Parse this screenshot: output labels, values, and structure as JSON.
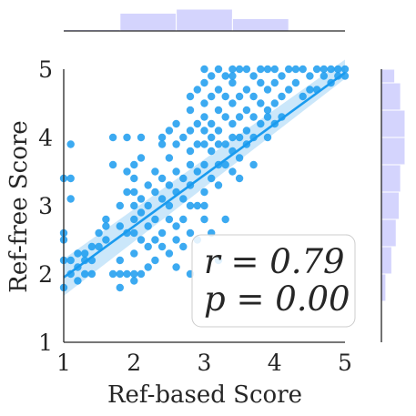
{
  "chart_data": {
    "type": "scatter",
    "subtype": "jointplot-with-regression",
    "xlabel": "Ref-based Score",
    "ylabel": "Ref-free Score",
    "xlim": [
      1,
      5
    ],
    "ylim": [
      1,
      5
    ],
    "x_ticks": [
      1,
      2,
      3,
      4,
      5
    ],
    "y_ticks": [
      1,
      2,
      3,
      4,
      5
    ],
    "x_tick_labels": [
      "1",
      "2",
      "3",
      "4",
      "5"
    ],
    "y_tick_labels": [
      "1",
      "2",
      "3",
      "4",
      "5"
    ],
    "colors": {
      "points": "#1a9bef",
      "regression_line": "#1a9bef",
      "confidence_band": "#a9d7f7",
      "histogram": "#d4d4fd",
      "axis": "#262626"
    },
    "regression": {
      "slope": 0.75,
      "intercept": 1.2,
      "ci_low_at_x1": 1.68,
      "ci_high_at_x1": 2.22,
      "ci_low_at_x5": 4.86,
      "ci_high_at_x5": 5.14
    },
    "annotation": {
      "r_text": "r = 0.79",
      "p_text": "p = 0.00",
      "legend_location": "lower-right"
    },
    "x_marginal_hist": {
      "bins": [
        1.0,
        1.8,
        2.6,
        3.4,
        4.2,
        5.0
      ],
      "counts": [
        1,
        13,
        16,
        9,
        0
      ]
    },
    "y_marginal_hist": {
      "bins": [
        1.6,
        2.0,
        2.4,
        2.8,
        3.2,
        3.6,
        4.0,
        4.4,
        4.8,
        5.0
      ],
      "counts": [
        3,
        7,
        10,
        12,
        13,
        16,
        16,
        13,
        9
      ]
    },
    "points": [
      [
        1.0,
        2.6
      ],
      [
        1.0,
        2.5
      ],
      [
        1.0,
        2.2
      ],
      [
        1.0,
        1.8
      ],
      [
        1.0,
        3.4
      ],
      [
        1.1,
        3.1
      ],
      [
        1.1,
        2.2
      ],
      [
        1.1,
        2.0
      ],
      [
        1.1,
        3.4
      ],
      [
        1.1,
        3.9
      ],
      [
        1.2,
        2.3
      ],
      [
        1.2,
        2.1
      ],
      [
        1.2,
        1.9
      ],
      [
        1.3,
        2.2
      ],
      [
        1.3,
        2.0
      ],
      [
        1.3,
        2.3
      ],
      [
        1.4,
        2.4
      ],
      [
        1.4,
        2.0
      ],
      [
        1.4,
        2.2
      ],
      [
        1.5,
        2.4
      ],
      [
        1.5,
        2.6
      ],
      [
        1.6,
        2.7
      ],
      [
        1.6,
        2.5
      ],
      [
        1.6,
        2.8
      ],
      [
        1.7,
        4.0
      ],
      [
        1.7,
        3.6
      ],
      [
        1.8,
        3.0
      ],
      [
        1.8,
        2.7
      ],
      [
        1.8,
        2.2
      ],
      [
        1.8,
        2.0
      ],
      [
        1.9,
        2.6
      ],
      [
        1.9,
        3.2
      ],
      [
        1.9,
        4.0
      ],
      [
        1.9,
        3.5
      ],
      [
        1.9,
        2.0
      ],
      [
        2.0,
        2.0
      ],
      [
        2.0,
        2.3
      ],
      [
        2.0,
        2.6
      ],
      [
        2.0,
        2.8
      ],
      [
        2.0,
        3.0
      ],
      [
        2.0,
        3.2
      ],
      [
        2.0,
        3.4
      ],
      [
        2.0,
        3.6
      ],
      [
        2.1,
        2.9
      ],
      [
        2.1,
        2.5
      ],
      [
        2.1,
        2.0
      ],
      [
        2.1,
        3.1
      ],
      [
        2.1,
        3.7
      ],
      [
        2.1,
        4.0
      ],
      [
        2.2,
        2.7
      ],
      [
        2.2,
        2.4
      ],
      [
        2.2,
        3.0
      ],
      [
        2.2,
        3.3
      ],
      [
        2.2,
        2.1
      ],
      [
        2.3,
        2.5
      ],
      [
        2.3,
        2.8
      ],
      [
        2.3,
        3.2
      ],
      [
        2.3,
        3.5
      ],
      [
        2.3,
        2.2
      ],
      [
        2.4,
        3.9
      ],
      [
        2.4,
        4.0
      ],
      [
        2.4,
        3.1
      ],
      [
        2.4,
        2.6
      ],
      [
        2.4,
        2.4
      ],
      [
        2.4,
        3.4
      ],
      [
        2.5,
        2.3
      ],
      [
        2.5,
        2.8
      ],
      [
        2.5,
        3.0
      ],
      [
        2.5,
        3.3
      ],
      [
        2.5,
        3.7
      ],
      [
        2.5,
        4.1
      ],
      [
        2.6,
        2.7
      ],
      [
        2.6,
        3.2
      ],
      [
        2.6,
        3.5
      ],
      [
        2.6,
        2.5
      ],
      [
        2.6,
        3.9
      ],
      [
        2.6,
        4.2
      ],
      [
        2.7,
        2.8
      ],
      [
        2.7,
        3.1
      ],
      [
        2.7,
        3.4
      ],
      [
        2.7,
        4.0
      ],
      [
        2.7,
        2.4
      ],
      [
        2.8,
        2.6
      ],
      [
        2.8,
        3.0
      ],
      [
        2.8,
        3.3
      ],
      [
        2.8,
        3.6
      ],
      [
        2.8,
        3.8
      ],
      [
        2.8,
        4.1
      ],
      [
        2.8,
        4.4
      ],
      [
        2.8,
        4.6
      ],
      [
        2.9,
        3.0
      ],
      [
        2.9,
        3.5
      ],
      [
        2.9,
        3.9
      ],
      [
        2.9,
        4.2
      ],
      [
        2.9,
        4.7
      ],
      [
        2.9,
        2.5
      ],
      [
        3.0,
        2.8
      ],
      [
        3.0,
        3.2
      ],
      [
        3.0,
        3.6
      ],
      [
        3.0,
        3.9
      ],
      [
        3.0,
        4.1
      ],
      [
        3.0,
        4.3
      ],
      [
        3.0,
        4.5
      ],
      [
        3.0,
        4.8
      ],
      [
        3.0,
        5.0
      ],
      [
        3.0,
        3.0
      ],
      [
        3.1,
        3.4
      ],
      [
        3.1,
        3.8
      ],
      [
        3.1,
        4.0
      ],
      [
        3.1,
        4.2
      ],
      [
        3.1,
        4.6
      ],
      [
        3.1,
        4.9
      ],
      [
        3.1,
        2.6
      ],
      [
        3.2,
        3.3
      ],
      [
        3.2,
        3.6
      ],
      [
        3.2,
        3.9
      ],
      [
        3.2,
        4.1
      ],
      [
        3.2,
        4.4
      ],
      [
        3.2,
        4.7
      ],
      [
        3.2,
        5.0
      ],
      [
        3.3,
        3.6
      ],
      [
        3.3,
        3.9
      ],
      [
        3.3,
        4.3
      ],
      [
        3.3,
        4.6
      ],
      [
        3.3,
        4.9
      ],
      [
        3.3,
        2.8
      ],
      [
        3.4,
        3.5
      ],
      [
        3.4,
        3.8
      ],
      [
        3.4,
        4.0
      ],
      [
        3.4,
        4.2
      ],
      [
        3.4,
        4.5
      ],
      [
        3.4,
        4.8
      ],
      [
        3.4,
        5.0
      ],
      [
        3.5,
        3.7
      ],
      [
        3.5,
        4.0
      ],
      [
        3.5,
        4.3
      ],
      [
        3.5,
        4.6
      ],
      [
        3.5,
        5.0
      ],
      [
        3.5,
        3.4
      ],
      [
        3.6,
        3.9
      ],
      [
        3.6,
        4.1
      ],
      [
        3.6,
        4.4
      ],
      [
        3.6,
        4.7
      ],
      [
        3.6,
        5.0
      ],
      [
        3.7,
        3.6
      ],
      [
        3.7,
        4.0
      ],
      [
        3.7,
        4.3
      ],
      [
        3.7,
        4.6
      ],
      [
        3.7,
        4.9
      ],
      [
        3.8,
        4.2
      ],
      [
        3.8,
        4.5
      ],
      [
        3.8,
        4.8
      ],
      [
        3.8,
        5.0
      ],
      [
        3.9,
        4.0
      ],
      [
        3.9,
        4.3
      ],
      [
        3.9,
        4.7
      ],
      [
        3.9,
        5.0
      ],
      [
        4.0,
        4.5
      ],
      [
        4.0,
        4.8
      ],
      [
        4.0,
        5.0
      ],
      [
        4.0,
        4.2
      ],
      [
        4.1,
        4.6
      ],
      [
        4.1,
        4.9
      ],
      [
        4.1,
        4.3
      ],
      [
        4.2,
        4.7
      ],
      [
        4.2,
        5.0
      ],
      [
        4.3,
        4.8
      ],
      [
        4.3,
        5.0
      ],
      [
        4.4,
        4.6
      ],
      [
        4.4,
        5.0
      ],
      [
        4.5,
        4.9
      ],
      [
        4.6,
        5.0
      ],
      [
        4.6,
        4.7
      ],
      [
        4.7,
        5.0
      ],
      [
        4.8,
        5.0
      ],
      [
        4.8,
        4.8
      ],
      [
        4.9,
        5.0
      ],
      [
        4.9,
        4.9
      ],
      [
        5.0,
        5.0
      ],
      [
        5.0,
        4.9
      ],
      [
        1.7,
        2.0
      ],
      [
        1.8,
        1.8
      ],
      [
        2.0,
        1.9
      ],
      [
        2.8,
        2.0
      ],
      [
        3.2,
        2.2
      ],
      [
        2.6,
        2.1
      ],
      [
        3.4,
        4.9
      ],
      [
        3.9,
        4.4
      ],
      [
        4.5,
        4.7
      ],
      [
        4.7,
        4.9
      ]
    ]
  }
}
